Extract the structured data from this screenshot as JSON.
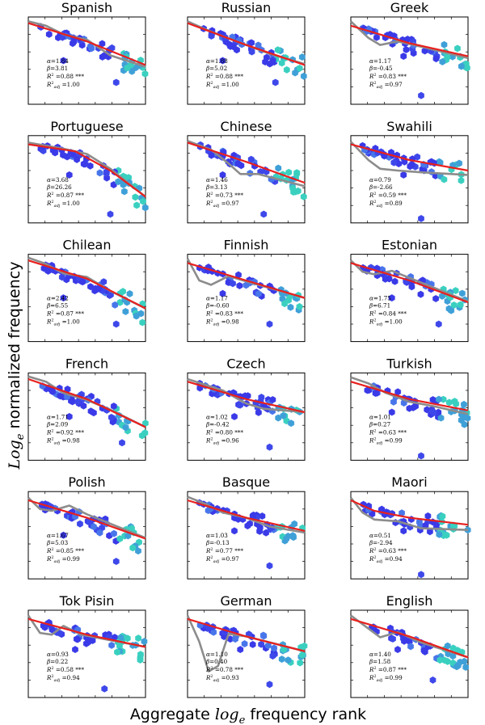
{
  "figure": {
    "xlabel_pre": "Aggregate ",
    "xlabel_var": "log",
    "xlabel_sub": "e",
    "xlabel_post": " frequency rank",
    "ylabel_var": "Log",
    "ylabel_sub": "e",
    "ylabel_post": " normalized frequency"
  },
  "chart_data": [
    {
      "type": "scatter",
      "title": "Spanish",
      "alpha": "1.84",
      "beta": "3.81",
      "r2": "0.88",
      "r2adj": "1.00",
      "fit": [
        [
          0,
          9.3
        ],
        [
          5,
          7.2
        ],
        [
          10,
          4.5
        ]
      ],
      "loess": [
        [
          0,
          9.5
        ],
        [
          1.5,
          9.0
        ],
        [
          3,
          8.0
        ],
        [
          5,
          7.4
        ],
        [
          7,
          5.6
        ],
        [
          10,
          4.3
        ]
      ],
      "cloud": [
        [
          3,
          9
        ],
        [
          7.5,
          2.5
        ]
      ]
    },
    {
      "type": "scatter",
      "title": "Russian",
      "alpha": "1.88",
      "beta": "5.02",
      "r2": "0.88",
      "r2adj": "1.00",
      "fit": [
        [
          0,
          9.3
        ],
        [
          5,
          6.8
        ],
        [
          10,
          4.5
        ]
      ],
      "loess": [
        [
          0,
          9.5
        ],
        [
          1.5,
          8.6
        ],
        [
          3,
          7.8
        ],
        [
          5,
          6.8
        ],
        [
          7,
          5.8
        ],
        [
          10,
          4.6
        ]
      ],
      "cloud": [
        [
          3,
          9
        ],
        [
          7.5,
          2.5
        ]
      ]
    },
    {
      "type": "scatter",
      "title": "Greek",
      "alpha": "1.17",
      "beta": "-0.45",
      "r2": "0.83",
      "r2adj": "0.97",
      "fit": [
        [
          0,
          9.0
        ],
        [
          5,
          7.0
        ],
        [
          10,
          5.5
        ]
      ],
      "loess": [
        [
          0,
          9.5
        ],
        [
          1.5,
          7.6
        ],
        [
          2.5,
          6.8
        ],
        [
          4,
          7.2
        ],
        [
          6,
          6.6
        ],
        [
          10,
          5.3
        ]
      ],
      "cloud": [
        [
          4.5,
          9.5
        ],
        [
          6,
          1
        ]
      ]
    },
    {
      "type": "scatter",
      "title": "Portuguese",
      "alpha": "3.68",
      "beta": "26.26",
      "r2": "0.87",
      "r2adj": "1.00",
      "fit": [
        [
          0,
          9.0
        ],
        [
          4,
          8.2
        ],
        [
          7,
          6.0
        ],
        [
          10,
          3.0
        ]
      ],
      "loess": [
        [
          0,
          9.2
        ],
        [
          3,
          8.5
        ],
        [
          5,
          7.9
        ],
        [
          7,
          6.2
        ],
        [
          10,
          3.0
        ]
      ],
      "cloud": [
        [
          3.5,
          9.5
        ],
        [
          7,
          1
        ]
      ]
    },
    {
      "type": "scatter",
      "title": "Chinese",
      "alpha": "1.46",
      "beta": "3.13",
      "r2": "0.73",
      "r2adj": "0.97",
      "fit": [
        [
          0,
          9.2
        ],
        [
          5,
          7.0
        ],
        [
          10,
          4.6
        ]
      ],
      "loess": [
        [
          0,
          9.4
        ],
        [
          2,
          8.4
        ],
        [
          3.5,
          6.8
        ],
        [
          4.5,
          5.6
        ],
        [
          6,
          5.6
        ],
        [
          10,
          4.2
        ]
      ],
      "cloud": [
        [
          3,
          9.5
        ],
        [
          6.5,
          1
        ]
      ]
    },
    {
      "type": "scatter",
      "title": "Swahili",
      "alpha": "0.79",
      "beta": "-2.66",
      "r2": "0.59",
      "r2adj": "0.89",
      "fit": [
        [
          0,
          9.0
        ],
        [
          5,
          7.2
        ],
        [
          10,
          6.0
        ]
      ],
      "loess": [
        [
          0,
          9.3
        ],
        [
          1.5,
          7.2
        ],
        [
          2.5,
          6.2
        ],
        [
          4,
          6.0
        ],
        [
          6,
          5.8
        ],
        [
          10,
          5.5
        ]
      ],
      "cloud": [
        [
          4.5,
          9.5
        ],
        [
          6,
          0.5
        ]
      ]
    },
    {
      "type": "scatter",
      "title": "Chilean",
      "alpha": "2.42",
      "beta": "6.55",
      "r2": "0.87",
      "r2adj": "1.00",
      "fit": [
        [
          0,
          9.3
        ],
        [
          5,
          7.2
        ],
        [
          10,
          3.8
        ]
      ],
      "loess": [
        [
          0,
          9.6
        ],
        [
          1.5,
          8.9
        ],
        [
          3,
          7.8
        ],
        [
          5,
          7.4
        ],
        [
          7,
          5.8
        ],
        [
          10,
          3.8
        ]
      ],
      "cloud": [
        [
          3,
          9
        ],
        [
          7.5,
          2
        ]
      ]
    },
    {
      "type": "scatter",
      "title": "Finnish",
      "alpha": "1.17",
      "beta": "-0.60",
      "r2": "0.83",
      "r2adj": "0.98",
      "fit": [
        [
          0,
          9.0
        ],
        [
          5,
          7.0
        ],
        [
          10,
          5.0
        ]
      ],
      "loess": [
        [
          0,
          9.5
        ],
        [
          1,
          7.0
        ],
        [
          2,
          6.5
        ],
        [
          3.5,
          7.5
        ],
        [
          5,
          6.9
        ],
        [
          10,
          5.0
        ]
      ],
      "cloud": [
        [
          3,
          9.5
        ],
        [
          7,
          2
        ]
      ]
    },
    {
      "type": "scatter",
      "title": "Estonian",
      "alpha": "1.75",
      "beta": "6.71",
      "r2": "0.84",
      "r2adj": "1.00",
      "fit": [
        [
          0,
          9.0
        ],
        [
          5,
          7.0
        ],
        [
          10,
          4.5
        ]
      ],
      "loess": [
        [
          0,
          9.3
        ],
        [
          1,
          8.0
        ],
        [
          2,
          7.7
        ],
        [
          3.5,
          8.1
        ],
        [
          5,
          7.3
        ],
        [
          10,
          4.6
        ]
      ],
      "cloud": [
        [
          3.5,
          9
        ],
        [
          7.5,
          2
        ]
      ]
    },
    {
      "type": "scatter",
      "title": "French",
      "alpha": "1.71",
      "beta": "2.09",
      "r2": "0.92",
      "r2adj": "0.98",
      "fit": [
        [
          0,
          9.3
        ],
        [
          5,
          7.0
        ],
        [
          10,
          3.8
        ]
      ],
      "loess": [
        [
          0,
          9.6
        ],
        [
          1.5,
          9.0
        ],
        [
          3,
          7.7
        ],
        [
          5,
          6.9
        ],
        [
          7,
          5.8
        ],
        [
          10,
          3.8
        ]
      ],
      "cloud": [
        [
          3.5,
          9
        ],
        [
          8,
          2
        ]
      ]
    },
    {
      "type": "scatter",
      "title": "Czech",
      "alpha": "1.02",
      "beta": "-0.42",
      "r2": "0.80",
      "r2adj": "0.96",
      "fit": [
        [
          0,
          9.0
        ],
        [
          5,
          7.0
        ],
        [
          10,
          5.5
        ]
      ],
      "loess": [
        [
          0,
          9.3
        ],
        [
          3,
          8.0
        ],
        [
          5,
          6.5
        ],
        [
          6.5,
          5.9
        ],
        [
          10,
          5.5
        ]
      ],
      "cloud": [
        [
          4,
          9
        ],
        [
          7,
          1.5
        ]
      ]
    },
    {
      "type": "scatter",
      "title": "Turkish",
      "alpha": "1.01",
      "beta": "0.27",
      "r2": "0.63",
      "r2adj": "0.99",
      "fit": [
        [
          0,
          9.0
        ],
        [
          5,
          7.0
        ],
        [
          10,
          5.7
        ]
      ],
      "loess": [
        [
          0,
          9.5
        ],
        [
          1.5,
          8.8
        ],
        [
          3,
          7.7
        ],
        [
          5,
          6.7
        ],
        [
          7,
          6.2
        ],
        [
          10,
          5.3
        ]
      ],
      "cloud": [
        [
          3.5,
          9.5
        ],
        [
          6,
          0.5
        ]
      ]
    },
    {
      "type": "scatter",
      "title": "Polish",
      "alpha": "1.67",
      "beta": "5.03",
      "r2": "0.85",
      "r2adj": "0.99",
      "fit": [
        [
          0,
          9.0
        ],
        [
          5,
          7.0
        ],
        [
          10,
          4.6
        ]
      ],
      "loess": [
        [
          0,
          9.3
        ],
        [
          1,
          8.0
        ],
        [
          2,
          7.8
        ],
        [
          3.5,
          8.4
        ],
        [
          5,
          7.4
        ],
        [
          10,
          4.7
        ]
      ],
      "cloud": [
        [
          3,
          9
        ],
        [
          7.5,
          2
        ]
      ]
    },
    {
      "type": "scatter",
      "title": "Basque",
      "alpha": "1.03",
      "beta": "-0.13",
      "r2": "0.77",
      "r2adj": "0.97",
      "fit": [
        [
          0,
          9.0
        ],
        [
          5,
          7.0
        ],
        [
          10,
          5.5
        ]
      ],
      "loess": [
        [
          0,
          9.4
        ],
        [
          1.5,
          8.6
        ],
        [
          3,
          7.6
        ],
        [
          5,
          7.0
        ],
        [
          7,
          6.0
        ],
        [
          10,
          5.3
        ]
      ],
      "cloud": [
        [
          4,
          9.5
        ],
        [
          7,
          1.5
        ]
      ]
    },
    {
      "type": "scatter",
      "title": "Maori",
      "alpha": "0.51",
      "beta": "-2.94",
      "r2": "0.63",
      "r2adj": "0.94",
      "fit": [
        [
          0,
          9.0
        ],
        [
          2,
          7.8
        ],
        [
          5,
          7.0
        ],
        [
          10,
          6.2
        ]
      ],
      "loess": [
        [
          0,
          9.3
        ],
        [
          1,
          7.6
        ],
        [
          2,
          6.8
        ],
        [
          4,
          6.6
        ],
        [
          6,
          5.8
        ],
        [
          10,
          5.6
        ]
      ],
      "cloud": [
        [
          4.5,
          9.5
        ],
        [
          6,
          0.5
        ]
      ]
    },
    {
      "type": "scatter",
      "title": "Tok Pisin",
      "alpha": "0.93",
      "beta": "0.22",
      "r2": "0.58",
      "r2adj": "0.94",
      "fit": [
        [
          0,
          9.0
        ],
        [
          5,
          7.2
        ],
        [
          10,
          5.8
        ]
      ],
      "loess": [
        [
          0,
          9.4
        ],
        [
          1,
          7.4
        ],
        [
          2,
          7.2
        ],
        [
          3,
          8.2
        ],
        [
          4.5,
          7.2
        ],
        [
          10,
          5.8
        ]
      ],
      "cloud": [
        [
          4,
          9.5
        ],
        [
          6.5,
          1
        ]
      ]
    },
    {
      "type": "scatter",
      "title": "German",
      "alpha": "1.10",
      "beta": "0.40",
      "r2": "0.78",
      "r2adj": "0.93",
      "fit": [
        [
          0,
          9.0
        ],
        [
          5,
          7.0
        ],
        [
          10,
          5.3
        ]
      ],
      "loess": [
        [
          0,
          9.4
        ],
        [
          1,
          6.4
        ],
        [
          1.8,
          3.0
        ],
        [
          2.6,
          3.6
        ],
        [
          3.5,
          7.3
        ],
        [
          5,
          7.0
        ],
        [
          10,
          5.3
        ]
      ],
      "cloud": [
        [
          4.5,
          9.5
        ],
        [
          7,
          1.5
        ]
      ]
    },
    {
      "type": "scatter",
      "title": "English",
      "alpha": "1.40",
      "beta": "1.58",
      "r2": "0.87",
      "r2adj": "0.99",
      "fit": [
        [
          0,
          9.0
        ],
        [
          5,
          7.0
        ],
        [
          10,
          4.6
        ]
      ],
      "loess": [
        [
          0,
          9.4
        ],
        [
          1.5,
          7.9
        ],
        [
          2.5,
          6.9
        ],
        [
          4,
          7.5
        ],
        [
          6,
          6.3
        ],
        [
          10,
          4.6
        ]
      ],
      "cloud": [
        [
          4,
          9.5
        ],
        [
          7,
          2
        ]
      ]
    }
  ]
}
